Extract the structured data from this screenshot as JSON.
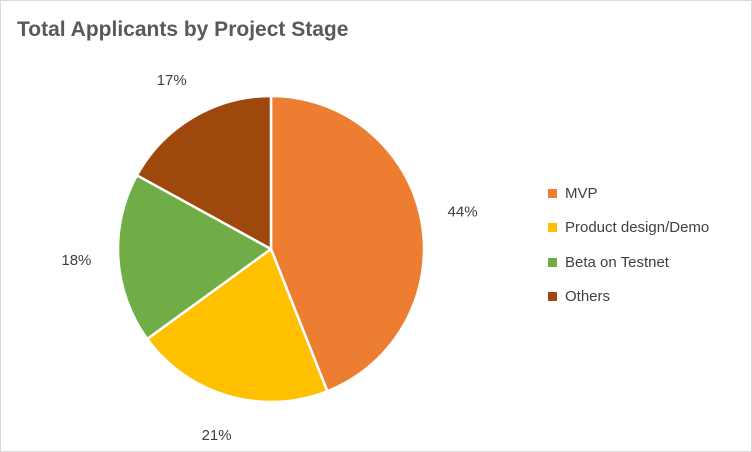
{
  "chart_data": {
    "type": "pie",
    "title": "Total Applicants by Project Stage",
    "categories": [
      "MVP",
      "Product design/Demo",
      "Beta on Testnet",
      "Others"
    ],
    "values": [
      44,
      21,
      18,
      17
    ],
    "labels": [
      "44%",
      "21%",
      "18%",
      "17%"
    ],
    "colors": [
      "#ED7D31",
      "#FFC000",
      "#70AD47",
      "#9E480E"
    ],
    "start_angle_deg": 0,
    "direction": "clockwise",
    "legend_position": "right"
  }
}
